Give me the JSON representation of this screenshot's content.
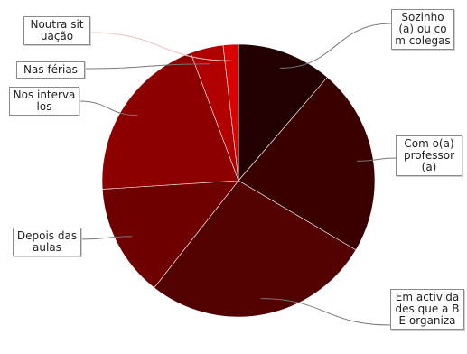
{
  "chart_data": {
    "type": "pie",
    "start_angle_deg": 0,
    "direction": "clockwise",
    "slices": [
      {
        "label": "Sozinho (a) ou com colegas",
        "value": 11.3,
        "color": "#220000"
      },
      {
        "label": "Com o(a) professor (a)",
        "value": 22.2,
        "color": "#3a0000"
      },
      {
        "label": "Em actividades que a BE organiza",
        "value": 27.1,
        "color": "#520000"
      },
      {
        "label": "Depois das aulas",
        "value": 13.4,
        "color": "#6e0000"
      },
      {
        "label": "Nos intervalos",
        "value": 20.3,
        "color": "#8c0000"
      },
      {
        "label": "Nas férias",
        "value": 3.9,
        "color": "#b00000"
      },
      {
        "label": "Noutra situação",
        "value": 1.8,
        "color": "#dd0000"
      }
    ]
  }
}
